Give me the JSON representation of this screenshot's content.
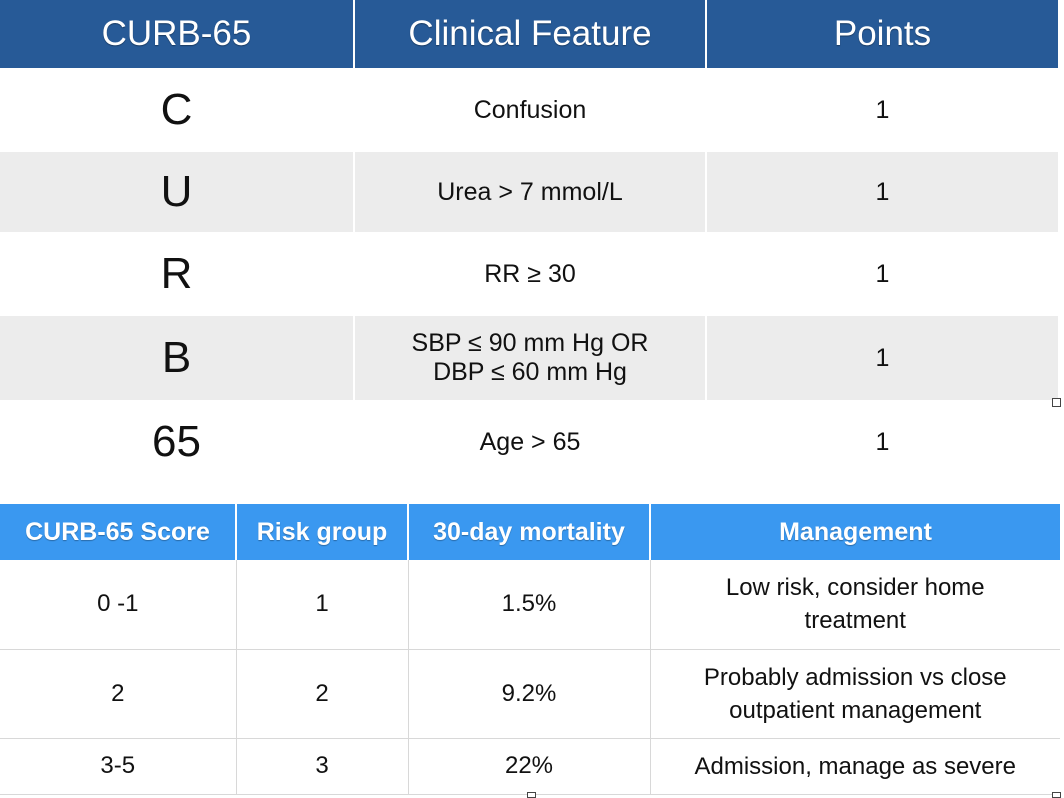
{
  "criteria_table": {
    "headers": [
      "CURB-65",
      "Clinical Feature",
      "Points"
    ],
    "rows": [
      {
        "letter": "C",
        "feature_line1": "Confusion",
        "feature_line2": "",
        "points": "1"
      },
      {
        "letter": "U",
        "feature_line1": "Urea > 7 mmol/L",
        "feature_line2": "",
        "points": "1"
      },
      {
        "letter": "R",
        "feature_line1": "RR ≥ 30",
        "feature_line2": "",
        "points": "1"
      },
      {
        "letter": "B",
        "feature_line1": "SBP ≤ 90 mm Hg OR",
        "feature_line2": "DBP ≤ 60 mm Hg",
        "points": "1"
      },
      {
        "letter": "65",
        "feature_line1": "Age > 65",
        "feature_line2": "",
        "points": "1"
      }
    ]
  },
  "score_table": {
    "headers": [
      "CURB-65 Score",
      "Risk group",
      "30-day mortality",
      "Management"
    ],
    "rows": [
      {
        "score": "0 -1",
        "risk": "1",
        "mortality": "1.5%",
        "management_line1": "Low risk, consider home",
        "management_line2": "treatment"
      },
      {
        "score": "2",
        "risk": "2",
        "mortality": "9.2%",
        "management_line1": "Probably admission vs close",
        "management_line2": "outpatient management"
      },
      {
        "score": "3-5",
        "risk": "3",
        "mortality": "22%",
        "management_line1": "Admission, manage as severe",
        "management_line2": ""
      }
    ]
  }
}
